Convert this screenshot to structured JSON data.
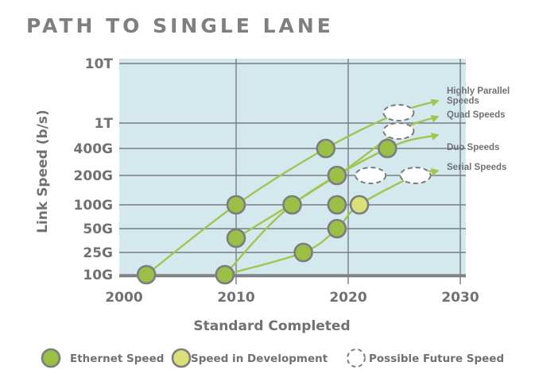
{
  "chart_data": {
    "type": "scatter",
    "title": "PATH TO SINGLE LANE",
    "xlabel": "Standard Completed",
    "ylabel": "Link Speed (b/s)",
    "xlim": [
      2000,
      2030
    ],
    "x_ticks": [
      2000,
      2010,
      2020,
      2030
    ],
    "y_categories": [
      "10G",
      "25G",
      "50G",
      "100G",
      "200G",
      "400G",
      "1T",
      "10T"
    ],
    "colors": {
      "ethernet": "#9bbf45",
      "development": "#dbe07a",
      "background": "#d3e9ee",
      "arrow": "#a2c451",
      "grid": "#7b7d80"
    },
    "points": [
      {
        "year": 2002,
        "speed": "10G",
        "status": "ethernet"
      },
      {
        "year": 2009,
        "speed": "10G",
        "status": "ethernet"
      },
      {
        "year": 2010,
        "speed": "40G",
        "status": "ethernet"
      },
      {
        "year": 2010,
        "speed": "100G",
        "status": "ethernet"
      },
      {
        "year": 2015,
        "speed": "100G",
        "status": "ethernet"
      },
      {
        "year": 2016,
        "speed": "25G",
        "status": "ethernet"
      },
      {
        "year": 2018,
        "speed": "400G",
        "status": "ethernet"
      },
      {
        "year": 2019,
        "speed": "200G",
        "status": "ethernet"
      },
      {
        "year": 2019,
        "speed": "100G",
        "status": "ethernet"
      },
      {
        "year": 2019,
        "speed": "50G",
        "status": "ethernet"
      },
      {
        "year": 2021,
        "speed": "100G",
        "status": "development"
      },
      {
        "year": 2023.5,
        "speed": "400G",
        "status": "ethernet"
      },
      {
        "year": 2024.5,
        "speed": "1.6T",
        "status": "future"
      },
      {
        "year": 2024.5,
        "speed": "800G",
        "status": "future"
      },
      {
        "year": 2022,
        "speed": "200G",
        "status": "future"
      },
      {
        "year": 2026,
        "speed": "200G",
        "status": "future"
      }
    ],
    "series": [
      {
        "name": "Highly Parallel Speeds",
        "label_lines": [
          "Highly Parallel",
          "Speeds"
        ],
        "path": [
          [
            2002,
            "10G"
          ],
          [
            2010,
            "100G"
          ],
          [
            2018,
            "400G"
          ],
          [
            2024.5,
            "1.6T"
          ],
          [
            2028,
            "2.5T"
          ]
        ]
      },
      {
        "name": "Quad Speeds",
        "label_lines": [
          "Quad Speeds"
        ],
        "path": [
          [
            2010,
            "40G"
          ],
          [
            2019,
            "200G"
          ],
          [
            2024.5,
            "800G"
          ],
          [
            2028,
            "1.4T"
          ]
        ]
      },
      {
        "name": "Duo Speeds",
        "label_lines": [
          "Duo Speeds"
        ],
        "path": [
          [
            2009,
            "10G"
          ],
          [
            2015,
            "100G"
          ],
          [
            2023.5,
            "400G"
          ],
          [
            2028,
            "570G"
          ]
        ]
      },
      {
        "name": "Serial Speeds",
        "label_lines": [
          "Serial Speeds"
        ],
        "path": [
          [
            2009,
            "10G"
          ],
          [
            2016,
            "25G"
          ],
          [
            2019,
            "50G"
          ],
          [
            2021,
            "100G"
          ],
          [
            2026,
            "200G"
          ],
          [
            2028,
            "240G"
          ]
        ]
      }
    ],
    "legend": [
      {
        "status": "ethernet",
        "label": "Ethernet Speed"
      },
      {
        "status": "development",
        "label": "Speed in Development"
      },
      {
        "status": "future",
        "label": "Possible Future Speed"
      }
    ]
  }
}
